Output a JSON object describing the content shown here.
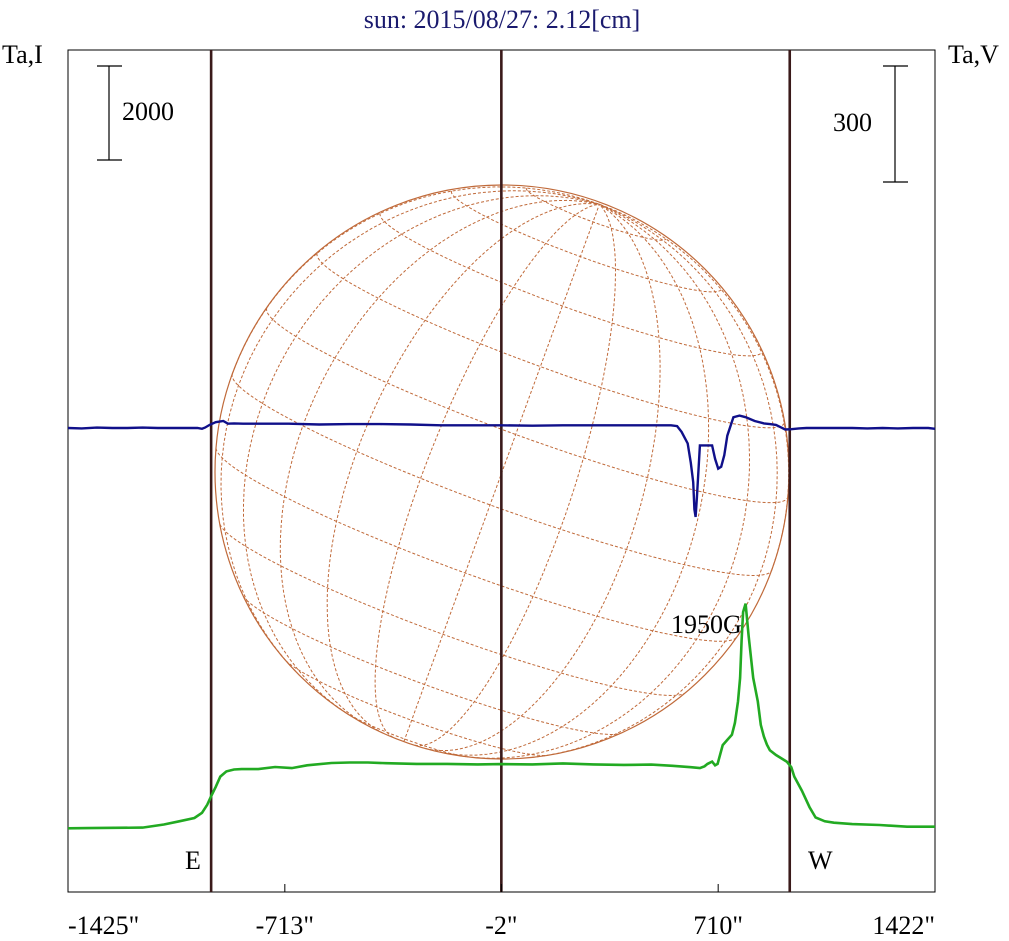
{
  "title": "sun: 2015/08/27: 2.12[cm]",
  "left_axis_label": "Ta,I",
  "right_axis_label": "Ta,V",
  "scale_bars": {
    "intensity": "2000",
    "polarization": "300"
  },
  "annotation": "1950G",
  "limb_labels": {
    "east": "E",
    "west": "W"
  },
  "colors": {
    "intensity": "#22aa22",
    "polarization": "#10108a",
    "limb_lines": "#3a1a1a",
    "grid": "#c06a3a",
    "title": "#1a1a6e"
  },
  "chart_data": {
    "type": "line",
    "x_unit": "arcsec",
    "xlim": [
      -1425,
      1422
    ],
    "x_ticks": [
      -1425,
      -713,
      -2,
      710,
      1422
    ],
    "x_tick_labels": [
      "-1425\"",
      "-713\"",
      "-2\"",
      "710\"",
      "1422\""
    ],
    "vertical_lines_x": [
      -955,
      -2,
      945
    ],
    "series": [
      {
        "key": "intensity",
        "x": [
          -1425,
          -1360,
          -1180,
          -1110,
          -1060,
          -1010,
          -985,
          -968,
          -955,
          -940,
          -925,
          -905,
          -880,
          -855,
          -800,
          -745,
          -690,
          -640,
          -560,
          -500,
          -440,
          -380,
          -280,
          -180,
          -80,
          -2,
          100,
          200,
          300,
          400,
          490,
          560,
          620,
          650,
          665,
          675,
          690,
          700,
          708,
          725,
          740,
          755,
          765,
          775,
          782,
          787,
          792,
          800,
          810,
          825,
          840,
          850,
          860,
          870,
          880,
          900,
          935,
          950,
          960,
          985,
          1010,
          1030,
          1060,
          1090,
          1150,
          1240,
          1330,
          1422
        ],
        "y": [
          100,
          105,
          115,
          180,
          250,
          320,
          430,
          600,
          780,
          980,
          1200,
          1310,
          1350,
          1360,
          1360,
          1405,
          1380,
          1440,
          1490,
          1500,
          1500,
          1485,
          1470,
          1470,
          1460,
          1465,
          1460,
          1480,
          1460,
          1450,
          1455,
          1430,
          1400,
          1380,
          1420,
          1470,
          1520,
          1440,
          1470,
          1870,
          1980,
          2090,
          2340,
          2800,
          3300,
          4100,
          4700,
          4880,
          4200,
          3300,
          2800,
          2300,
          2050,
          1880,
          1760,
          1660,
          1520,
          1400,
          1200,
          900,
          550,
          330,
          250,
          220,
          190,
          170,
          135,
          135
        ]
      },
      {
        "key": "polarization",
        "x": [
          -1425,
          -1380,
          -1330,
          -1280,
          -1230,
          -1180,
          -1130,
          -1080,
          -1030,
          -1000,
          -985,
          -975,
          -960,
          -940,
          -915,
          -900,
          -880,
          -850,
          -800,
          -700,
          -600,
          -500,
          -400,
          -300,
          -200,
          -100,
          -2,
          100,
          200,
          300,
          400,
          500,
          555,
          575,
          590,
          610,
          620,
          628,
          632,
          636,
          640,
          650,
          665,
          690,
          700,
          710,
          720,
          730,
          740,
          760,
          780,
          800,
          830,
          860,
          880,
          900,
          915,
          930,
          950,
          975,
          1000,
          1050,
          1100,
          1150,
          1200,
          1250,
          1300,
          1350,
          1400,
          1422
        ],
        "y": [
          0,
          -1,
          1,
          0,
          0,
          1,
          0,
          0,
          0,
          0,
          -2,
          1,
          8,
          15,
          18,
          11,
          12,
          11,
          11,
          11,
          9,
          10,
          10,
          9,
          7,
          7,
          7,
          6,
          7,
          7,
          7,
          7,
          7,
          5,
          -10,
          -40,
          -90,
          -140,
          -210,
          -230,
          -180,
          -45,
          -45,
          -45,
          -80,
          -105,
          -100,
          -70,
          -20,
          28,
          32,
          28,
          18,
          12,
          10,
          8,
          2,
          -4,
          -3,
          -1,
          0,
          0,
          0,
          0,
          -1,
          0,
          -1,
          0,
          0,
          -2
        ]
      }
    ]
  }
}
